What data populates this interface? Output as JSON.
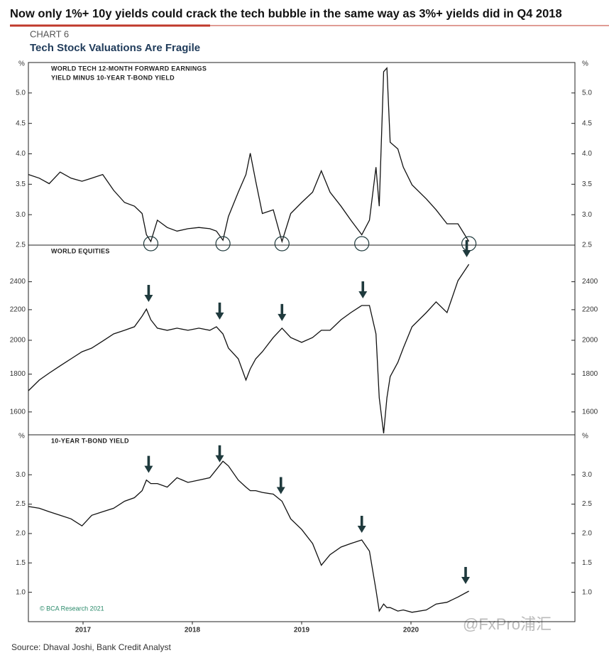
{
  "header": {
    "headline": "Now only 1%+ 10y yields could crack the tech bubble in the same way as 3%+ yields did in Q4 2018",
    "chart_number": "CHART 6",
    "chart_title": "Tech Stock Valuations Are Fragile"
  },
  "source": "Source: Dhaval Joshi, Bank Credit Analyst",
  "watermark": "@FxPro浦汇",
  "chart_data": [
    {
      "type": "line",
      "label_lines": [
        "WORLD TECH 12-MONTH FORWARD EARNINGS",
        "YIELD MINUS 10-YEAR T-BOND YIELD"
      ],
      "unit": "%",
      "color": "#111111",
      "x": [
        2017.0,
        2017.1,
        2017.19,
        2017.29,
        2017.39,
        2017.49,
        2017.58,
        2017.68,
        2017.78,
        2017.88,
        2017.97,
        2018.04,
        2018.08,
        2018.12,
        2018.18,
        2018.27,
        2018.36,
        2018.46,
        2018.56,
        2018.66,
        2018.72,
        2018.78,
        2018.83,
        2018.92,
        2018.99,
        2019.03,
        2019.08,
        2019.14,
        2019.24,
        2019.32,
        2019.4,
        2019.5,
        2019.6,
        2019.68,
        2019.76,
        2019.86,
        2019.95,
        2020.05,
        2020.12,
        2020.18,
        2020.21,
        2020.25,
        2020.28,
        2020.31,
        2020.38,
        2020.43,
        2020.51,
        2020.64,
        2020.73,
        2020.83,
        2020.93,
        2021.03
      ],
      "values": [
        3.66,
        3.6,
        3.51,
        3.7,
        3.6,
        3.55,
        3.6,
        3.66,
        3.4,
        3.2,
        3.14,
        3.02,
        2.67,
        2.56,
        2.91,
        2.79,
        2.73,
        2.77,
        2.79,
        2.77,
        2.73,
        2.58,
        2.97,
        3.37,
        3.66,
        4.01,
        3.55,
        3.02,
        3.08,
        2.56,
        3.02,
        3.2,
        3.37,
        3.72,
        3.37,
        3.14,
        2.91,
        2.67,
        2.91,
        3.78,
        3.14,
        5.35,
        5.41,
        4.19,
        4.08,
        3.78,
        3.49,
        3.26,
        3.08,
        2.85,
        2.85,
        2.56
      ],
      "circles": [
        2018.12,
        2018.78,
        2019.32,
        2020.05,
        2021.03
      ],
      "xlim": [
        2017.0,
        2022.0
      ],
      "ylim": [
        2.5,
        5.5
      ],
      "yticks": [
        2.5,
        {
          "value": 3,
          "label": "3.0"
        },
        3.5,
        {
          "value": 4,
          "label": "4.0"
        },
        4.5,
        {
          "value": 5,
          "label": "5.0"
        }
      ]
    },
    {
      "type": "line",
      "label_lines": [
        "WORLD EQUITIES"
      ],
      "color": "#111111",
      "log": true,
      "x": [
        2017.0,
        2017.1,
        2017.19,
        2017.29,
        2017.39,
        2017.49,
        2017.58,
        2017.68,
        2017.78,
        2017.88,
        2017.97,
        2018.04,
        2018.08,
        2018.12,
        2018.18,
        2018.27,
        2018.36,
        2018.46,
        2018.56,
        2018.66,
        2018.72,
        2018.78,
        2018.83,
        2018.92,
        2018.99,
        2019.03,
        2019.08,
        2019.14,
        2019.24,
        2019.32,
        2019.4,
        2019.5,
        2019.6,
        2019.68,
        2019.76,
        2019.86,
        2019.95,
        2020.05,
        2020.12,
        2020.18,
        2020.21,
        2020.25,
        2020.28,
        2020.31,
        2020.38,
        2020.43,
        2020.51,
        2020.64,
        2020.73,
        2020.83,
        2020.93,
        2021.03
      ],
      "values": [
        1709,
        1767,
        1806,
        1847,
        1888,
        1930,
        1952,
        1995,
        2040,
        2063,
        2086,
        2156,
        2204,
        2132,
        2077,
        2063,
        2077,
        2063,
        2077,
        2063,
        2086,
        2040,
        1952,
        1888,
        1767,
        1830,
        1888,
        1930,
        2017,
        2077,
        2017,
        1987,
        2017,
        2063,
        2063,
        2132,
        2180,
        2229,
        2229,
        2040,
        1672,
        1497,
        1672,
        1786,
        1867,
        1952,
        2086,
        2180,
        2254,
        2180,
        2408,
        2534
      ],
      "arrows": [
        2018.1,
        2018.75,
        2019.32,
        2020.06,
        2021.01
      ],
      "xlim": [
        2017.0,
        2022.0
      ],
      "ylim": [
        1490,
        2690
      ],
      "yticks": [
        1600,
        1800,
        2000,
        2200,
        2400
      ]
    },
    {
      "type": "line",
      "label_lines": [
        "10-YEAR T-BOND YIELD"
      ],
      "unit": "%",
      "color": "#111111",
      "annotation": "© BCA Research 2021",
      "x": [
        2017.0,
        2017.1,
        2017.19,
        2017.29,
        2017.39,
        2017.49,
        2017.58,
        2017.68,
        2017.78,
        2017.88,
        2017.97,
        2018.04,
        2018.08,
        2018.12,
        2018.18,
        2018.27,
        2018.36,
        2018.46,
        2018.56,
        2018.66,
        2018.72,
        2018.78,
        2018.83,
        2018.92,
        2018.99,
        2019.03,
        2019.08,
        2019.14,
        2019.24,
        2019.32,
        2019.4,
        2019.5,
        2019.6,
        2019.68,
        2019.76,
        2019.86,
        2019.95,
        2020.05,
        2020.12,
        2020.18,
        2020.21,
        2020.25,
        2020.28,
        2020.31,
        2020.38,
        2020.43,
        2020.51,
        2020.64,
        2020.73,
        2020.83,
        2020.93,
        2021.03
      ],
      "values": [
        2.46,
        2.43,
        2.37,
        2.31,
        2.25,
        2.13,
        2.31,
        2.37,
        2.43,
        2.55,
        2.61,
        2.73,
        2.91,
        2.85,
        2.85,
        2.79,
        2.95,
        2.87,
        2.91,
        2.95,
        3.09,
        3.23,
        3.15,
        2.91,
        2.79,
        2.73,
        2.73,
        2.7,
        2.67,
        2.55,
        2.25,
        2.07,
        1.83,
        1.46,
        1.64,
        1.77,
        1.83,
        1.89,
        1.7,
        1.04,
        0.68,
        0.8,
        0.74,
        0.74,
        0.68,
        0.7,
        0.66,
        0.7,
        0.8,
        0.83,
        0.92,
        1.02
      ],
      "arrows": [
        2018.1,
        2018.75,
        2019.31,
        2020.05,
        2021.0
      ],
      "xlim": [
        2017.0,
        2022.0
      ],
      "ylim": [
        0.5,
        3.68
      ],
      "yticks": [
        {
          "value": 1,
          "label": "1.0"
        },
        1.5,
        {
          "value": 2,
          "label": "2.0"
        },
        2.5,
        {
          "value": 3,
          "label": "3.0"
        }
      ],
      "xticks": [
        {
          "value": 2017.5,
          "label": "2017"
        },
        {
          "value": 2018.5,
          "label": "2018"
        },
        {
          "value": 2019.5,
          "label": "2019"
        },
        {
          "value": 2020.5,
          "label": "2020"
        }
      ]
    }
  ]
}
